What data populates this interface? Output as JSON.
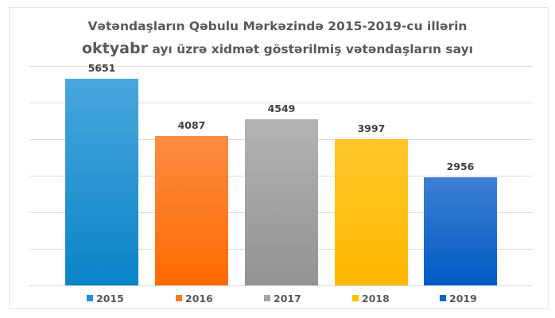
{
  "title": {
    "line1": "Vətəndaşların Qəbulu Mərkəzində 2015-2019-cu illərin",
    "line2_emphasis": "oktyabr",
    "line2_rest": " ayı üzrə xidmət göstərilmiş vətəndaşların sayı"
  },
  "chart_data": {
    "type": "bar",
    "title": "Vətəndaşların Qəbulu Mərkəzində 2015-2019-cu illərin oktyabr ayı üzrə xidmət göstərilmiş vətəndaşların sayı",
    "categories": [
      "2015",
      "2016",
      "2017",
      "2018",
      "2019"
    ],
    "values": [
      5651,
      4087,
      4549,
      3997,
      2956
    ],
    "series": [
      {
        "name": "2015",
        "values": [
          5651
        ],
        "color": "#1f93d6"
      },
      {
        "name": "2016",
        "values": [
          4087
        ],
        "color": "#ff7a1a"
      },
      {
        "name": "2017",
        "values": [
          4549
        ],
        "color": "#a5a5a5"
      },
      {
        "name": "2018",
        "values": [
          3997
        ],
        "color": "#ffc000"
      },
      {
        "name": "2019",
        "values": [
          2956
        ],
        "color": "#1565c8"
      }
    ],
    "xlabel": "",
    "ylabel": "",
    "ylim": [
      0,
      6000
    ],
    "grid_step": 1000,
    "grid": true,
    "axis_tick_labels_visible": false,
    "data_labels": true,
    "legend_position": "bottom"
  },
  "bars": [
    {
      "label": "5651",
      "year": "2015",
      "top": "#4aa6dd",
      "bottom": "#0a84c8"
    },
    {
      "label": "4087",
      "year": "2016",
      "top": "#fb8d43",
      "bottom": "#ff6a00"
    },
    {
      "label": "4549",
      "year": "2017",
      "top": "#b3b3b3",
      "bottom": "#939393"
    },
    {
      "label": "3997",
      "year": "2018",
      "top": "#ffc72a",
      "bottom": "#ffb700"
    },
    {
      "label": "2956",
      "year": "2019",
      "top": "#3e7fd2",
      "bottom": "#005bc4"
    }
  ],
  "legend": [
    {
      "label": "2015",
      "color": "#1f93d6"
    },
    {
      "label": "2016",
      "color": "#ff7a1a"
    },
    {
      "label": "2017",
      "color": "#a5a5a5"
    },
    {
      "label": "2018",
      "color": "#ffc000"
    },
    {
      "label": "2019",
      "color": "#1565c8"
    }
  ]
}
